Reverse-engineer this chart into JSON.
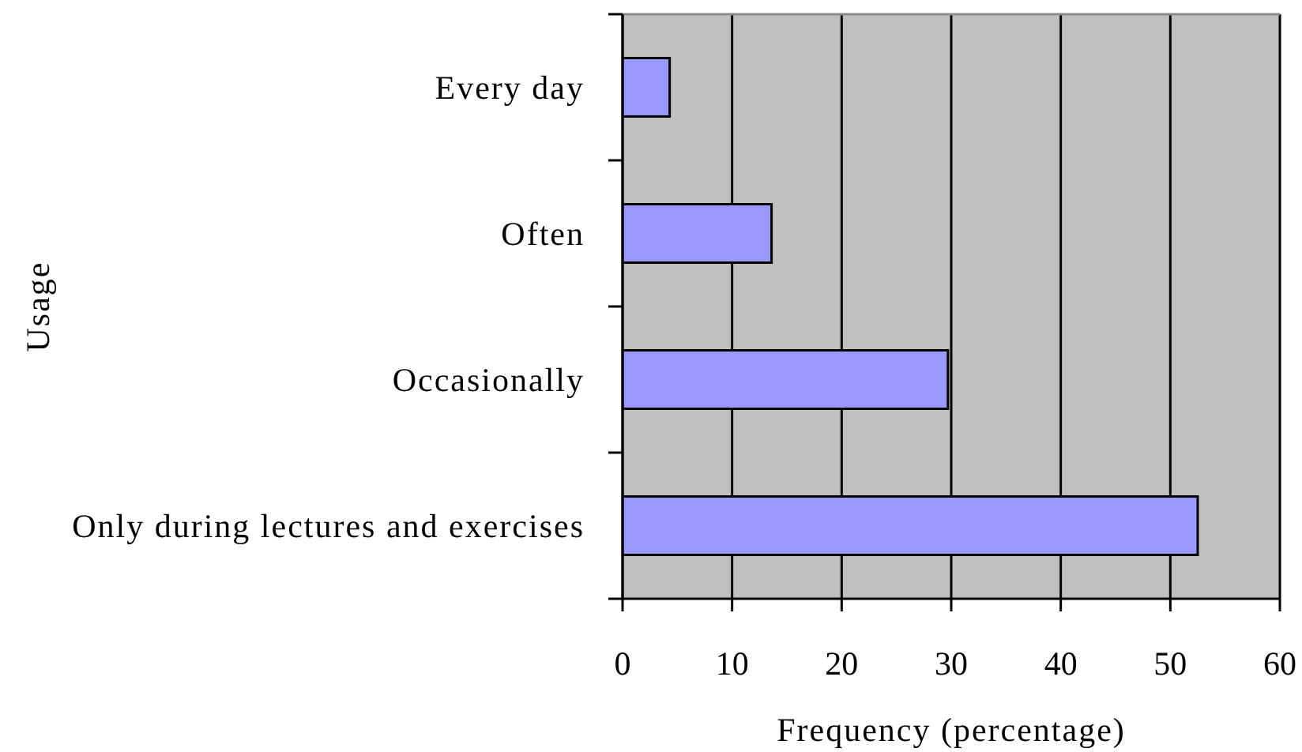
{
  "chart_data": {
    "type": "bar",
    "orientation": "horizontal",
    "xlabel": "Frequency (percentage)",
    "ylabel": "Usage",
    "categories": [
      "Every day",
      "Often",
      "Occasionally",
      "Only during lectures and exercises"
    ],
    "values": [
      4.3,
      13.6,
      29.7,
      52.5
    ],
    "color": "#9999ff",
    "xlim": [
      0,
      60
    ],
    "xticks": [
      0,
      10,
      20,
      30,
      40,
      50,
      60
    ],
    "grid": "x"
  }
}
